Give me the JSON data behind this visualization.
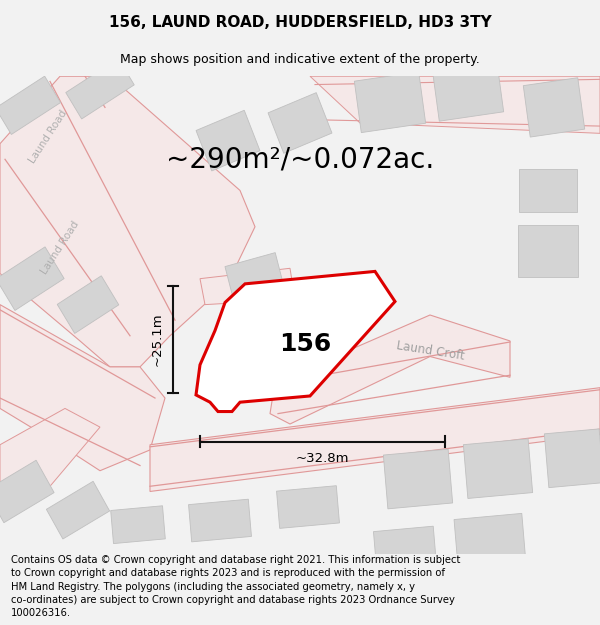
{
  "title": "156, LAUND ROAD, HUDDERSFIELD, HD3 3TY",
  "subtitle": "Map shows position and indicative extent of the property.",
  "area_text": "~290m²/~0.072ac.",
  "label_156": "156",
  "dim_height": "~25.1m",
  "dim_width": "~32.8m",
  "road_label_left1": "Laund Road",
  "road_label_left2": "Laund Road",
  "croft_label": "Laund Croft",
  "footer_text": "Contains OS data © Crown copyright and database right 2021. This information is subject to Crown copyright and database rights 2023 and is reproduced with the permission of HM Land Registry. The polygons (including the associated geometry, namely x, y co-ordinates) are subject to Crown copyright and database rights 2023 Ordnance Survey 100026316.",
  "bg_color": "#f2f2f2",
  "map_bg": "#ffffff",
  "building_color": "#d4d4d4",
  "building_edge": "#c0c0c0",
  "road_fill": "#f5e8e8",
  "road_line": "#e09898",
  "property_edge": "#dd0000",
  "dim_color": "#111111",
  "title_fontsize": 11,
  "subtitle_fontsize": 9,
  "area_fontsize": 20,
  "label_fontsize": 18,
  "dim_fontsize": 9.5,
  "road_label_fontsize": 7.5,
  "croft_label_fontsize": 8.5,
  "footer_fontsize": 7.2
}
